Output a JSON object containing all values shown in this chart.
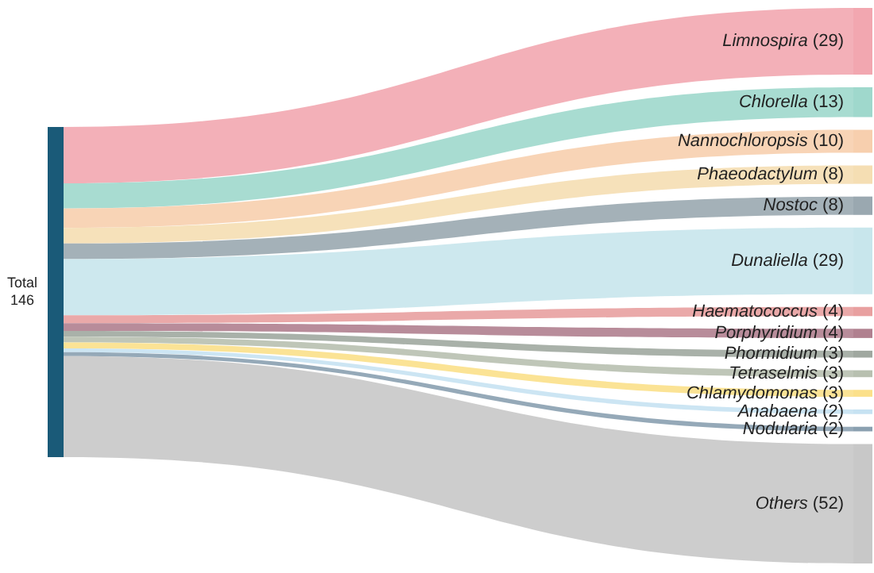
{
  "chart_data": {
    "type": "other",
    "annotations": [
      "Total 146"
    ],
    "categories": [
      "Limnospira",
      "Chlorella",
      "Nannochloropsis",
      "Phaeodactylum",
      "Nostoc",
      "Dunaliella",
      "Haematococcus",
      "Porphyridium",
      "Phormidium",
      "Tetraselmis",
      "Chlamydomonas",
      "Anabaena",
      "Nodularia",
      "Others"
    ],
    "values": [
      29,
      13,
      10,
      8,
      8,
      29,
      4,
      4,
      3,
      3,
      3,
      2,
      2,
      52
    ],
    "value_labels": [
      "(29)",
      "(13)",
      "(10)",
      "(8)",
      "(8)",
      "(29)",
      "(4)",
      "(4)",
      "(3)",
      "(3)",
      "(3)",
      "(2)",
      "(2)",
      "(52)"
    ],
    "colors": [
      "#f2a7b0",
      "#9fd8cc",
      "#f7cfae",
      "#f5deb3",
      "#9aa8b0",
      "#c8e6ec",
      "#e8a0a0",
      "#b0808f",
      "#a0a8a0",
      "#b8c0b0",
      "#fbe08a",
      "#c6e2f2",
      "#8aa0b0",
      "#c8c8c8"
    ]
  }
}
